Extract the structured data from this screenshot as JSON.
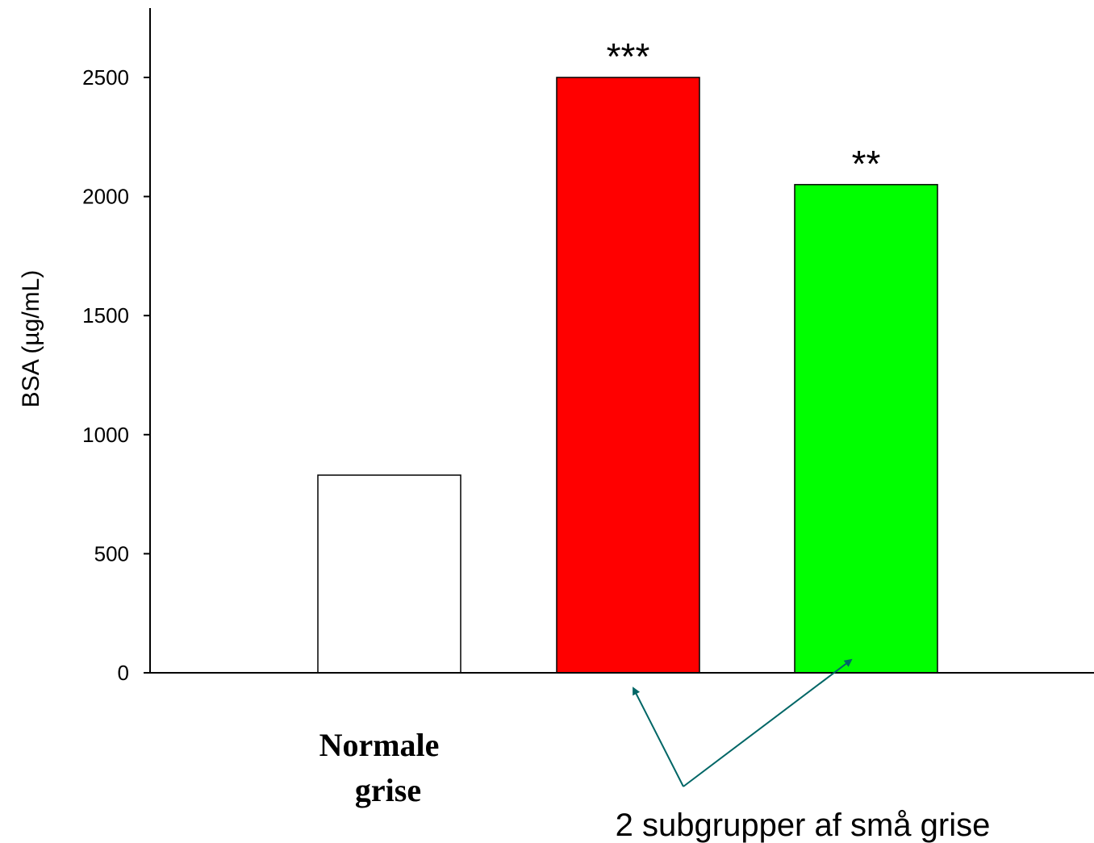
{
  "chart_data": {
    "type": "bar",
    "ylabel": "BSA (µg/mL)",
    "ylim": [
      0,
      2800
    ],
    "yticks": [
      0,
      500,
      1000,
      1500,
      2000,
      2500
    ],
    "bars": [
      {
        "value": 830,
        "color": "#ffffff",
        "significance": ""
      },
      {
        "value": 2500,
        "color": "#ff0000",
        "significance": "***"
      },
      {
        "value": 2050,
        "color": "#00ff00",
        "significance": "**"
      }
    ],
    "category_label_lines": [
      "Normale",
      "grise"
    ],
    "annotation": {
      "text": "2 subgrupper af små grise",
      "arrow_color": "#006666"
    },
    "grid": false
  }
}
